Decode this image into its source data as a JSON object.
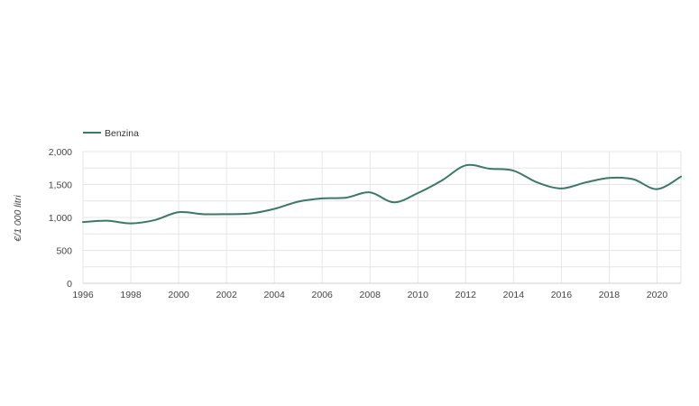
{
  "chart_data": {
    "type": "line",
    "title": "",
    "xlabel": "",
    "ylabel": "€/1 000 litri",
    "xlim": [
      1996,
      2021
    ],
    "ylim": [
      0,
      2000
    ],
    "grid": true,
    "legend_position": "top-left",
    "x_tick_labels": [
      "1996",
      "1998",
      "2000",
      "2002",
      "2004",
      "2006",
      "2008",
      "2010",
      "2012",
      "2014",
      "2016",
      "2018",
      "2020"
    ],
    "y_tick_labels": [
      "0",
      "500",
      "1,000",
      "1,500",
      "2,000"
    ],
    "series": [
      {
        "name": "Benzina",
        "color": "#3a7a63",
        "x": [
          1996,
          1997,
          1998,
          1999,
          2000,
          2001,
          2002,
          2003,
          2004,
          2005,
          2006,
          2007,
          2008,
          2009,
          2010,
          2011,
          2012,
          2013,
          2014,
          2015,
          2016,
          2017,
          2018,
          2019,
          2020,
          2021
        ],
        "y": [
          930,
          950,
          910,
          960,
          1080,
          1050,
          1050,
          1060,
          1130,
          1240,
          1290,
          1300,
          1380,
          1230,
          1370,
          1560,
          1790,
          1740,
          1710,
          1530,
          1440,
          1530,
          1600,
          1580,
          1430,
          1620
        ]
      }
    ]
  }
}
